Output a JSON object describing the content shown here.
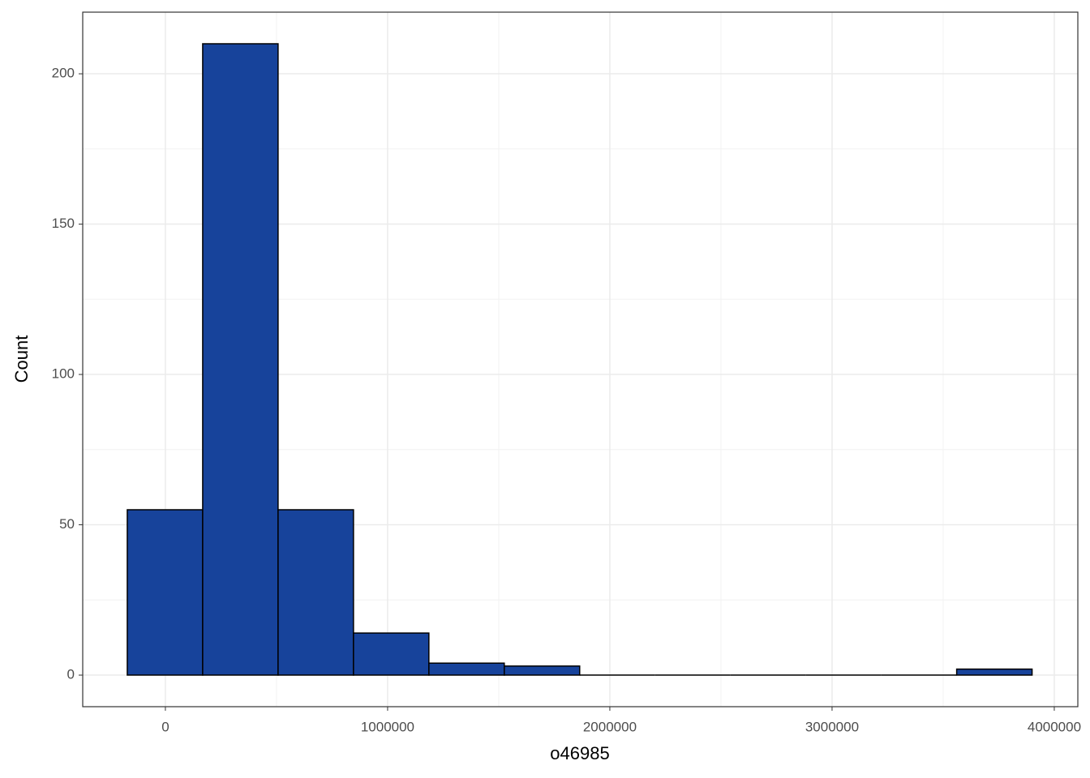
{
  "chart_data": {
    "type": "histogram",
    "x_label": "o46985",
    "y_label": "Count",
    "bins": [
      -171500,
      167800,
      507100,
      846400,
      1185700,
      1525000,
      1864300,
      2203600,
      2542900,
      2882200,
      3221500,
      3560800,
      3900100
    ],
    "values": [
      55,
      210,
      55,
      14,
      4,
      3,
      0,
      0,
      0,
      0,
      0,
      2
    ],
    "color": "#17439b",
    "edge_color": "#000000",
    "xlim": [
      -372000,
      4106000
    ],
    "ylim": [
      -10.5,
      220.5
    ],
    "xticks": [
      0,
      1000000,
      2000000,
      3000000,
      4000000
    ],
    "yticks": [
      0,
      50,
      100,
      150,
      200
    ],
    "grid": true
  }
}
